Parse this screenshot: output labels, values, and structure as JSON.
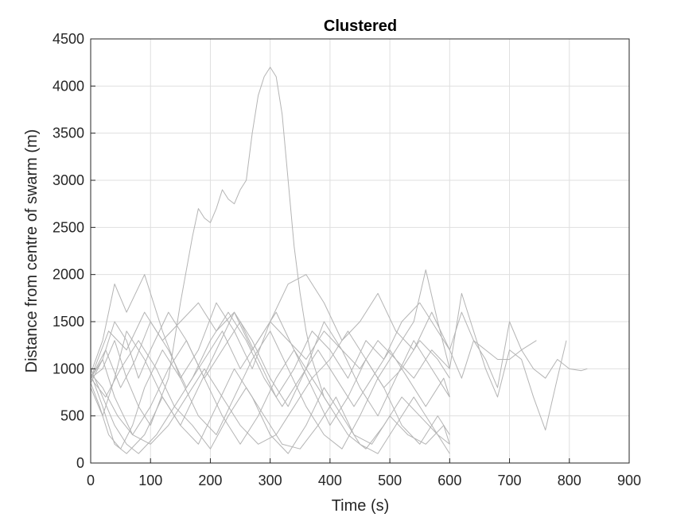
{
  "chart_data": {
    "type": "line",
    "title": "Clustered",
    "xlabel": "Time (s)",
    "ylabel": "Distance from centre of swarm (m)",
    "xlim": [
      0,
      900
    ],
    "ylim": [
      0,
      4500
    ],
    "xticks": [
      0,
      100,
      200,
      300,
      400,
      500,
      600,
      700,
      800,
      900
    ],
    "yticks": [
      0,
      500,
      1000,
      1500,
      2000,
      2500,
      3000,
      3500,
      4000,
      4500
    ],
    "grid": true,
    "line_color": "#b4b4b4",
    "series": [
      {
        "x": [
          0,
          20,
          40,
          60,
          80,
          100,
          130,
          150,
          170,
          180,
          190,
          200,
          210,
          220,
          230,
          240,
          250,
          260,
          270,
          280,
          290,
          300,
          310,
          320,
          330,
          340,
          350,
          360,
          370,
          380,
          390,
          400
        ],
        "y": [
          900,
          1000,
          1300,
          900,
          600,
          400,
          900,
          1700,
          2400,
          2700,
          2600,
          2550,
          2700,
          2900,
          2800,
          2750,
          2900,
          3000,
          3500,
          3900,
          4100,
          4200,
          4100,
          3700,
          3000,
          2300,
          1800,
          1400,
          1100,
          900,
          700,
          600
        ]
      },
      {
        "x": [
          0,
          20,
          40,
          60,
          80,
          100,
          130,
          160,
          190,
          220,
          250,
          280,
          310,
          340,
          370,
          400,
          430,
          460,
          490,
          520,
          550,
          580,
          600,
          620,
          640,
          660,
          680,
          700,
          720,
          740,
          760,
          780,
          800,
          820,
          830
        ],
        "y": [
          900,
          1100,
          1500,
          1300,
          900,
          1200,
          1600,
          1300,
          900,
          1200,
          1500,
          1100,
          700,
          1000,
          1400,
          1200,
          900,
          1300,
          1100,
          1500,
          1700,
          1400,
          1200,
          1600,
          1300,
          1200,
          1100,
          1100,
          1200,
          1000,
          900,
          1100,
          1000,
          980,
          1000
        ]
      },
      {
        "x": [
          0,
          15,
          30,
          50,
          70,
          90,
          120,
          150,
          180,
          210,
          240,
          270,
          300,
          330,
          360,
          390,
          420,
          450,
          480,
          510,
          540,
          560,
          580,
          600,
          620,
          640,
          660,
          680,
          700,
          720,
          740,
          760,
          780,
          795
        ],
        "y": [
          850,
          600,
          300,
          150,
          400,
          800,
          1200,
          900,
          500,
          300,
          700,
          1100,
          1400,
          1000,
          600,
          300,
          150,
          500,
          900,
          1200,
          1500,
          2050,
          1500,
          1000,
          1800,
          1400,
          1000,
          700,
          1200,
          1100,
          700,
          350,
          900,
          1300
        ]
      },
      {
        "x": [
          0,
          20,
          40,
          60,
          90,
          120,
          150,
          180,
          210,
          240,
          270,
          300,
          330,
          360,
          390,
          420,
          450,
          480,
          510,
          540,
          570,
          600,
          620,
          640,
          660,
          680,
          700,
          720,
          745
        ],
        "y": [
          950,
          1300,
          1900,
          1600,
          2000,
          1400,
          900,
          1200,
          1700,
          1400,
          1000,
          1500,
          1900,
          2000,
          1700,
          1300,
          1500,
          1800,
          1400,
          1200,
          1600,
          1200,
          900,
          1300,
          1100,
          800,
          1500,
          1200,
          1300
        ]
      },
      {
        "x": [
          0,
          20,
          40,
          60,
          80,
          110,
          140,
          170,
          200,
          230,
          260,
          290,
          320,
          350,
          380,
          410,
          440,
          470,
          500,
          530,
          560,
          590,
          600
        ],
        "y": [
          1000,
          700,
          400,
          200,
          100,
          300,
          600,
          400,
          150,
          500,
          800,
          500,
          200,
          150,
          400,
          700,
          300,
          200,
          500,
          300,
          200,
          400,
          200
        ]
      },
      {
        "x": [
          0,
          25,
          50,
          75,
          100,
          130,
          160,
          190,
          220,
          250,
          280,
          310,
          340,
          370,
          400,
          430,
          460,
          490,
          520,
          550,
          580,
          600
        ],
        "y": [
          900,
          1200,
          800,
          1100,
          1500,
          1200,
          800,
          1100,
          1400,
          1000,
          1300,
          1600,
          1200,
          900,
          1100,
          1400,
          1100,
          800,
          1000,
          1300,
          1100,
          900
        ]
      },
      {
        "x": [
          0,
          20,
          40,
          60,
          90,
          120,
          150,
          180,
          210,
          240,
          270,
          300,
          330,
          360,
          390,
          420,
          450,
          480,
          510,
          540,
          570,
          600
        ],
        "y": [
          800,
          500,
          900,
          1400,
          1100,
          700,
          400,
          800,
          1200,
          1600,
          1300,
          900,
          600,
          1000,
          1500,
          1200,
          800,
          500,
          900,
          1300,
          1000,
          700
        ]
      },
      {
        "x": [
          0,
          20,
          45,
          70,
          100,
          130,
          160,
          190,
          220,
          250,
          280,
          310,
          340,
          370,
          400,
          430,
          460,
          490,
          520,
          550,
          580,
          600
        ],
        "y": [
          950,
          800,
          500,
          300,
          200,
          400,
          700,
          1000,
          700,
          400,
          200,
          300,
          600,
          900,
          600,
          300,
          150,
          400,
          700,
          500,
          300,
          200
        ]
      },
      {
        "x": [
          0,
          30,
          60,
          90,
          120,
          150,
          180,
          210,
          240,
          270,
          300,
          330,
          360,
          390,
          420,
          450,
          480,
          510,
          540,
          570,
          600
        ],
        "y": [
          900,
          1400,
          1200,
          1600,
          1300,
          1500,
          1700,
          1400,
          1600,
          1200,
          1500,
          1300,
          1100,
          1400,
          1200,
          1000,
          1300,
          1100,
          900,
          1200,
          1000
        ]
      },
      {
        "x": [
          0,
          20,
          40,
          70,
          100,
          130,
          160,
          190,
          220,
          250,
          280,
          310,
          340,
          370,
          400,
          430,
          460,
          490,
          520,
          550,
          580,
          600
        ],
        "y": [
          850,
          1100,
          700,
          300,
          600,
          1000,
          1300,
          900,
          500,
          200,
          500,
          900,
          1200,
          800,
          400,
          700,
          1100,
          800,
          400,
          200,
          500,
          300
        ]
      },
      {
        "x": [
          0,
          25,
          50,
          80,
          110,
          140,
          170,
          200,
          230,
          260,
          290,
          320,
          350,
          380,
          410,
          440,
          470,
          500,
          530,
          560,
          590,
          600
        ],
        "y": [
          900,
          700,
          1000,
          1300,
          1000,
          600,
          900,
          1300,
          1600,
          1300,
          900,
          600,
          900,
          1200,
          900,
          600,
          900,
          1200,
          900,
          600,
          900,
          700
        ]
      },
      {
        "x": [
          0,
          20,
          40,
          60,
          90,
          120,
          150,
          180,
          210,
          240,
          270,
          300,
          330,
          360,
          390,
          420,
          450,
          480,
          510,
          540,
          570,
          600
        ],
        "y": [
          950,
          600,
          200,
          100,
          300,
          700,
          400,
          200,
          600,
          1000,
          700,
          300,
          100,
          400,
          800,
          500,
          200,
          100,
          400,
          700,
          400,
          100
        ]
      }
    ]
  }
}
